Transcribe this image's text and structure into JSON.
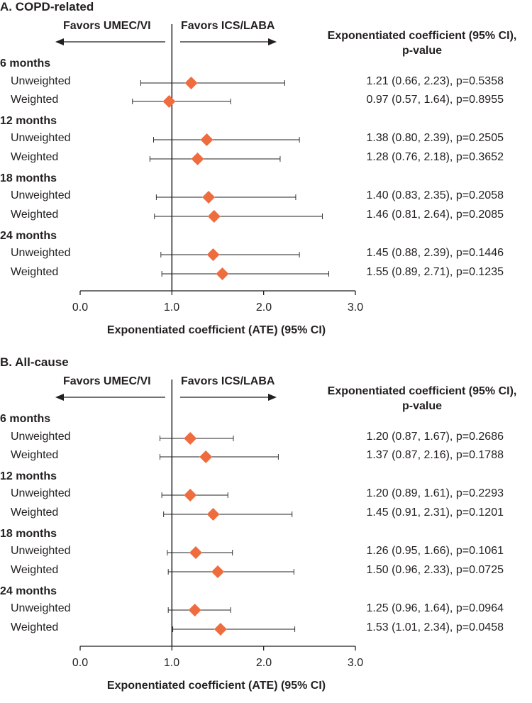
{
  "chart_data": [
    {
      "type": "forest",
      "title": "A. COPD-related",
      "favors_left": "Favors UMEC/VI",
      "favors_right": "Favors ICS/LABA",
      "estimate_header_line1": "Exponentiated coefficient (95% CI),",
      "estimate_header_line2": "p-value",
      "xlabel": "Exponentiated coefficient (ATE) (95% CI)",
      "xlim": [
        0,
        3
      ],
      "xticks": [
        "0.0",
        "1.0",
        "2.0",
        "3.0"
      ],
      "reference_line": 1.0,
      "colors": {
        "marker": "#ef6c3f",
        "line": "#231f20",
        "text": "#231f20"
      },
      "groups": [
        {
          "label": "6 months",
          "rows": [
            {
              "label": "Unweighted",
              "value": 1.21,
              "lower": 0.66,
              "upper": 2.23,
              "text": "1.21 (0.66, 2.23), p=0.5358"
            },
            {
              "label": "Weighted",
              "value": 0.97,
              "lower": 0.57,
              "upper": 1.64,
              "text": "0.97 (0.57, 1.64), p=0.8955"
            }
          ]
        },
        {
          "label": "12 months",
          "rows": [
            {
              "label": "Unweighted",
              "value": 1.38,
              "lower": 0.8,
              "upper": 2.39,
              "text": "1.38 (0.80, 2.39), p=0.2505"
            },
            {
              "label": "Weighted",
              "value": 1.28,
              "lower": 0.76,
              "upper": 2.18,
              "text": "1.28 (0.76, 2.18), p=0.3652"
            }
          ]
        },
        {
          "label": "18 months",
          "rows": [
            {
              "label": "Unweighted",
              "value": 1.4,
              "lower": 0.83,
              "upper": 2.35,
              "text": "1.40 (0.83, 2.35), p=0.2058"
            },
            {
              "label": "Weighted",
              "value": 1.46,
              "lower": 0.81,
              "upper": 2.64,
              "text": "1.46 (0.81, 2.64), p=0.2085"
            }
          ]
        },
        {
          "label": "24 months",
          "rows": [
            {
              "label": "Unweighted",
              "value": 1.45,
              "lower": 0.88,
              "upper": 2.39,
              "text": "1.45 (0.88, 2.39), p=0.1446"
            },
            {
              "label": "Weighted",
              "value": 1.55,
              "lower": 0.89,
              "upper": 2.71,
              "text": "1.55 (0.89, 2.71), p=0.1235"
            }
          ]
        }
      ]
    },
    {
      "type": "forest",
      "title": "B. All-cause",
      "favors_left": "Favors UMEC/VI",
      "favors_right": "Favors ICS/LABA",
      "estimate_header_line1": "Exponentiated coefficient (95% CI),",
      "estimate_header_line2": "p-value",
      "xlabel": "Exponentiated coefficient (ATE) (95% CI)",
      "xlim": [
        0,
        3
      ],
      "xticks": [
        "0.0",
        "1.0",
        "2.0",
        "3.0"
      ],
      "reference_line": 1.0,
      "colors": {
        "marker": "#ef6c3f",
        "line": "#231f20",
        "text": "#231f20"
      },
      "groups": [
        {
          "label": "6 months",
          "rows": [
            {
              "label": "Unweighted",
              "value": 1.2,
              "lower": 0.87,
              "upper": 1.67,
              "text": "1.20 (0.87, 1.67), p=0.2686"
            },
            {
              "label": "Weighted",
              "value": 1.37,
              "lower": 0.87,
              "upper": 2.16,
              "text": "1.37 (0.87, 2.16), p=0.1788"
            }
          ]
        },
        {
          "label": "12 months",
          "rows": [
            {
              "label": "Unweighted",
              "value": 1.2,
              "lower": 0.89,
              "upper": 1.61,
              "text": "1.20 (0.89, 1.61), p=0.2293"
            },
            {
              "label": "Weighted",
              "value": 1.45,
              "lower": 0.91,
              "upper": 2.31,
              "text": "1.45 (0.91, 2.31), p=0.1201"
            }
          ]
        },
        {
          "label": "18 months",
          "rows": [
            {
              "label": "Unweighted",
              "value": 1.26,
              "lower": 0.95,
              "upper": 1.66,
              "text": "1.26 (0.95, 1.66), p=0.1061"
            },
            {
              "label": "Weighted",
              "value": 1.5,
              "lower": 0.96,
              "upper": 2.33,
              "text": "1.50 (0.96, 2.33), p=0.0725"
            }
          ]
        },
        {
          "label": "24 months",
          "rows": [
            {
              "label": "Unweighted",
              "value": 1.25,
              "lower": 0.96,
              "upper": 1.64,
              "text": "1.25 (0.96, 1.64), p=0.0964"
            },
            {
              "label": "Weighted",
              "value": 1.53,
              "lower": 1.01,
              "upper": 2.34,
              "text": "1.53 (1.01, 2.34), p=0.0458"
            }
          ]
        }
      ]
    }
  ]
}
